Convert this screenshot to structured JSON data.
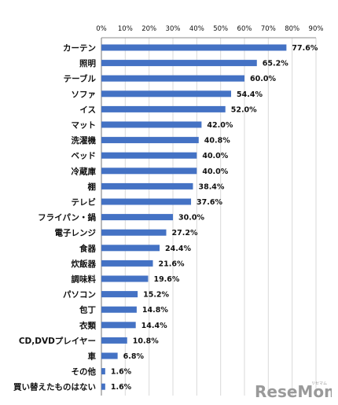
{
  "chart_data": {
    "type": "bar",
    "orientation": "horizontal",
    "categories": [
      "カーテン",
      "照明",
      "テーブル",
      "ソファ",
      "イス",
      "マット",
      "洗濯機",
      "ベッド",
      "冷蔵庫",
      "棚",
      "テレビ",
      "フライパン・鍋",
      "電子レンジ",
      "食器",
      "炊飯器",
      "調味料",
      "パソコン",
      "包丁",
      "衣類",
      "CD,DVDプレイヤー",
      "車",
      "その他",
      "買い替えたものはない"
    ],
    "values": [
      77.6,
      65.2,
      60.0,
      54.4,
      52.0,
      42.0,
      40.8,
      40.0,
      40.0,
      38.4,
      37.6,
      30.0,
      27.2,
      24.4,
      21.6,
      19.6,
      15.2,
      14.8,
      14.4,
      10.8,
      6.8,
      1.6,
      1.6
    ],
    "value_labels": [
      "77.6%",
      "65.2%",
      "60.0%",
      "54.4%",
      "52.0%",
      "42.0%",
      "40.8%",
      "40.0%",
      "40.0%",
      "38.4%",
      "37.6%",
      "30.0%",
      "27.2%",
      "24.4%",
      "21.6%",
      "19.6%",
      "15.2%",
      "14.8%",
      "14.4%",
      "10.8%",
      "6.8%",
      "1.6%",
      "1.6%"
    ],
    "ticks": [
      0,
      10,
      20,
      30,
      40,
      50,
      60,
      70,
      80,
      90
    ],
    "tick_labels": [
      "0%",
      "10%",
      "20%",
      "30%",
      "40%",
      "50%",
      "60%",
      "70%",
      "80%",
      "90%"
    ],
    "xlim": [
      0,
      90
    ],
    "grid": true,
    "axis_position": "top",
    "title": "",
    "xlabel": "",
    "ylabel": "",
    "colors": {
      "bar": "#4472c4",
      "grid": "#d9d9d9",
      "axis": "#8c8c8c",
      "text": "#111111"
    }
  },
  "watermark": {
    "text": "ReseMom",
    "subtext": "リセマム",
    "color": "#9a9a9a"
  }
}
